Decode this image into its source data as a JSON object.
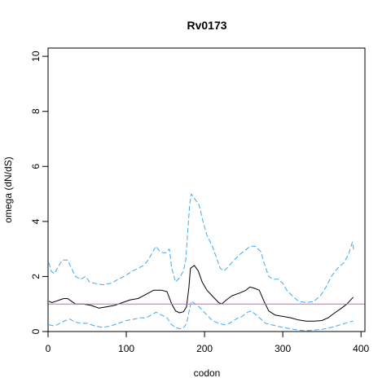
{
  "chart_data": {
    "type": "line",
    "title": "Rv0173",
    "xlabel": "codon",
    "ylabel": "omega (dN/dS)",
    "xlim": [
      0,
      405
    ],
    "ylim": [
      0,
      10.3
    ],
    "x_ticks": [
      0,
      100,
      200,
      300,
      400
    ],
    "y_ticks": [
      0,
      2,
      4,
      6,
      8,
      10
    ],
    "reference_line": {
      "y": 1,
      "color": "#cc66cc"
    },
    "grid": false,
    "legend": "none",
    "colors": {
      "estimate": "#000000",
      "bounds": "#3fa9f5"
    },
    "series": [
      {
        "role": "estimate",
        "style": "solid",
        "points": [
          [
            1,
            1.1
          ],
          [
            5,
            1.05
          ],
          [
            10,
            1.1
          ],
          [
            15,
            1.15
          ],
          [
            20,
            1.2
          ],
          [
            25,
            1.2
          ],
          [
            30,
            1.1
          ],
          [
            35,
            1.0
          ],
          [
            45,
            1.0
          ],
          [
            55,
            0.95
          ],
          [
            65,
            0.85
          ],
          [
            75,
            0.9
          ],
          [
            85,
            0.95
          ],
          [
            95,
            1.05
          ],
          [
            105,
            1.15
          ],
          [
            115,
            1.2
          ],
          [
            125,
            1.35
          ],
          [
            135,
            1.5
          ],
          [
            145,
            1.5
          ],
          [
            152,
            1.45
          ],
          [
            158,
            1.0
          ],
          [
            163,
            0.75
          ],
          [
            168,
            0.68
          ],
          [
            173,
            0.72
          ],
          [
            177,
            0.9
          ],
          [
            180,
            1.6
          ],
          [
            182,
            2.3
          ],
          [
            187,
            2.4
          ],
          [
            192,
            2.2
          ],
          [
            197,
            1.8
          ],
          [
            203,
            1.5
          ],
          [
            208,
            1.35
          ],
          [
            213,
            1.2
          ],
          [
            218,
            1.05
          ],
          [
            222,
            1.0
          ],
          [
            228,
            1.15
          ],
          [
            235,
            1.3
          ],
          [
            245,
            1.4
          ],
          [
            253,
            1.5
          ],
          [
            258,
            1.62
          ],
          [
            263,
            1.58
          ],
          [
            270,
            1.5
          ],
          [
            276,
            1.1
          ],
          [
            282,
            0.75
          ],
          [
            290,
            0.6
          ],
          [
            300,
            0.55
          ],
          [
            310,
            0.5
          ],
          [
            320,
            0.42
          ],
          [
            330,
            0.38
          ],
          [
            340,
            0.38
          ],
          [
            350,
            0.4
          ],
          [
            358,
            0.5
          ],
          [
            365,
            0.65
          ],
          [
            375,
            0.85
          ],
          [
            382,
            1.0
          ],
          [
            390,
            1.25
          ]
        ]
      },
      {
        "role": "upper-bound",
        "style": "dashed",
        "points": [
          [
            1,
            2.5
          ],
          [
            4,
            2.2
          ],
          [
            8,
            2.1
          ],
          [
            12,
            2.3
          ],
          [
            18,
            2.6
          ],
          [
            25,
            2.6
          ],
          [
            30,
            2.3
          ],
          [
            35,
            2.0
          ],
          [
            42,
            1.9
          ],
          [
            48,
            2.0
          ],
          [
            53,
            1.8
          ],
          [
            60,
            1.75
          ],
          [
            70,
            1.7
          ],
          [
            80,
            1.75
          ],
          [
            90,
            1.9
          ],
          [
            100,
            2.05
          ],
          [
            108,
            2.2
          ],
          [
            115,
            2.3
          ],
          [
            122,
            2.4
          ],
          [
            128,
            2.6
          ],
          [
            133,
            2.85
          ],
          [
            138,
            3.1
          ],
          [
            143,
            2.9
          ],
          [
            150,
            2.85
          ],
          [
            155,
            3.0
          ],
          [
            158,
            2.3
          ],
          [
            163,
            1.8
          ],
          [
            168,
            1.95
          ],
          [
            173,
            2.2
          ],
          [
            176,
            2.6
          ],
          [
            179,
            3.8
          ],
          [
            181,
            4.6
          ],
          [
            183,
            5.0
          ],
          [
            188,
            4.8
          ],
          [
            193,
            4.6
          ],
          [
            198,
            4.0
          ],
          [
            203,
            3.5
          ],
          [
            210,
            3.1
          ],
          [
            215,
            2.7
          ],
          [
            220,
            2.3
          ],
          [
            225,
            2.2
          ],
          [
            230,
            2.35
          ],
          [
            238,
            2.6
          ],
          [
            245,
            2.8
          ],
          [
            252,
            2.95
          ],
          [
            258,
            3.1
          ],
          [
            265,
            3.1
          ],
          [
            272,
            2.9
          ],
          [
            276,
            2.5
          ],
          [
            282,
            2.0
          ],
          [
            288,
            1.9
          ],
          [
            295,
            1.9
          ],
          [
            300,
            1.75
          ],
          [
            305,
            1.5
          ],
          [
            312,
            1.3
          ],
          [
            320,
            1.1
          ],
          [
            330,
            1.05
          ],
          [
            340,
            1.1
          ],
          [
            348,
            1.3
          ],
          [
            355,
            1.6
          ],
          [
            362,
            2.0
          ],
          [
            370,
            2.3
          ],
          [
            378,
            2.5
          ],
          [
            384,
            2.8
          ],
          [
            389,
            3.25
          ],
          [
            391,
            2.9
          ]
        ]
      },
      {
        "role": "lower-bound",
        "style": "dashed",
        "points": [
          [
            1,
            0.25
          ],
          [
            8,
            0.2
          ],
          [
            15,
            0.3
          ],
          [
            22,
            0.4
          ],
          [
            28,
            0.45
          ],
          [
            34,
            0.35
          ],
          [
            42,
            0.3
          ],
          [
            50,
            0.3
          ],
          [
            60,
            0.2
          ],
          [
            70,
            0.15
          ],
          [
            80,
            0.2
          ],
          [
            90,
            0.3
          ],
          [
            100,
            0.4
          ],
          [
            110,
            0.45
          ],
          [
            118,
            0.5
          ],
          [
            125,
            0.5
          ],
          [
            132,
            0.6
          ],
          [
            138,
            0.7
          ],
          [
            145,
            0.6
          ],
          [
            152,
            0.5
          ],
          [
            158,
            0.25
          ],
          [
            163,
            0.15
          ],
          [
            168,
            0.1
          ],
          [
            173,
            0.12
          ],
          [
            177,
            0.3
          ],
          [
            180,
            0.7
          ],
          [
            183,
            1.1
          ],
          [
            188,
            1.0
          ],
          [
            193,
            0.9
          ],
          [
            198,
            0.75
          ],
          [
            203,
            0.6
          ],
          [
            210,
            0.4
          ],
          [
            218,
            0.3
          ],
          [
            225,
            0.25
          ],
          [
            232,
            0.3
          ],
          [
            240,
            0.45
          ],
          [
            248,
            0.55
          ],
          [
            255,
            0.7
          ],
          [
            260,
            0.75
          ],
          [
            266,
            0.6
          ],
          [
            272,
            0.45
          ],
          [
            278,
            0.3
          ],
          [
            285,
            0.25
          ],
          [
            292,
            0.2
          ],
          [
            300,
            0.15
          ],
          [
            310,
            0.1
          ],
          [
            320,
            0.05
          ],
          [
            330,
            0.03
          ],
          [
            340,
            0.05
          ],
          [
            350,
            0.08
          ],
          [
            358,
            0.12
          ],
          [
            366,
            0.18
          ],
          [
            374,
            0.25
          ],
          [
            382,
            0.32
          ],
          [
            390,
            0.38
          ]
        ]
      }
    ]
  }
}
